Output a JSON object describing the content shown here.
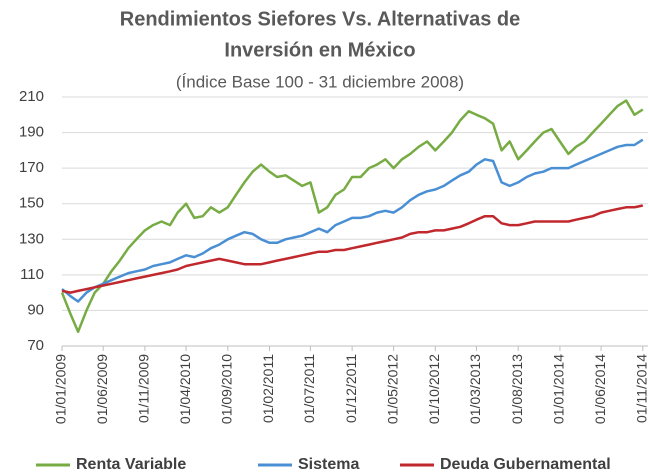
{
  "chart_data": {
    "type": "line",
    "title": [
      "Rendimientos Siefores Vs. Alternativas de",
      "Inversión en México"
    ],
    "subtitle": "(Índice Base 100 - 31 diciembre 2008)",
    "x": [
      "2009-01-01",
      "2009-02-01",
      "2009-03-01",
      "2009-04-01",
      "2009-05-01",
      "2009-06-01",
      "2009-07-01",
      "2009-08-01",
      "2009-09-01",
      "2009-10-01",
      "2009-11-01",
      "2009-12-01",
      "2010-01-01",
      "2010-02-01",
      "2010-03-01",
      "2010-04-01",
      "2010-05-01",
      "2010-06-01",
      "2010-07-01",
      "2010-08-01",
      "2010-09-01",
      "2010-10-01",
      "2010-11-01",
      "2010-12-01",
      "2011-01-01",
      "2011-02-01",
      "2011-03-01",
      "2011-04-01",
      "2011-05-01",
      "2011-06-01",
      "2011-07-01",
      "2011-08-01",
      "2011-09-01",
      "2011-10-01",
      "2011-11-01",
      "2011-12-01",
      "2012-01-01",
      "2012-02-01",
      "2012-03-01",
      "2012-04-01",
      "2012-05-01",
      "2012-06-01",
      "2012-07-01",
      "2012-08-01",
      "2012-09-01",
      "2012-10-01",
      "2012-11-01",
      "2012-12-01",
      "2013-01-01",
      "2013-02-01",
      "2013-03-01",
      "2013-04-01",
      "2013-05-01",
      "2013-06-01",
      "2013-07-01",
      "2013-08-01",
      "2013-09-01",
      "2013-10-01",
      "2013-11-01",
      "2013-12-01",
      "2014-01-01",
      "2014-02-01",
      "2014-03-01",
      "2014-04-01",
      "2014-05-01",
      "2014-06-01",
      "2014-07-01",
      "2014-08-01",
      "2014-09-01",
      "2014-10-01",
      "2014-11-01"
    ],
    "series": [
      {
        "name": "Renta Variable",
        "color": "#77ab43",
        "values": [
          100,
          88,
          78,
          90,
          100,
          105,
          112,
          118,
          125,
          130,
          135,
          138,
          140,
          138,
          145,
          150,
          142,
          143,
          148,
          145,
          148,
          155,
          162,
          168,
          172,
          168,
          165,
          166,
          163,
          160,
          162,
          145,
          148,
          155,
          158,
          165,
          165,
          170,
          172,
          175,
          170,
          175,
          178,
          182,
          185,
          180,
          185,
          190,
          197,
          202,
          200,
          198,
          195,
          180,
          185,
          175,
          180,
          185,
          190,
          192,
          185,
          178,
          182,
          185,
          190,
          195,
          200,
          205,
          208,
          200,
          203
        ]
      },
      {
        "name": "Sistema",
        "color": "#4a8fd4",
        "values": [
          102,
          98,
          95,
          100,
          103,
          105,
          107,
          109,
          111,
          112,
          113,
          115,
          116,
          117,
          119,
          121,
          120,
          122,
          125,
          127,
          130,
          132,
          134,
          133,
          130,
          128,
          128,
          130,
          131,
          132,
          134,
          136,
          134,
          138,
          140,
          142,
          142,
          143,
          145,
          146,
          145,
          148,
          152,
          155,
          157,
          158,
          160,
          163,
          166,
          168,
          172,
          175,
          174,
          162,
          160,
          162,
          165,
          167,
          168,
          170,
          170,
          170,
          172,
          174,
          176,
          178,
          180,
          182,
          183,
          183,
          186
        ]
      },
      {
        "name": "Deuda Gubernamental",
        "color": "#c0282d",
        "values": [
          101,
          100,
          101,
          102,
          103,
          104,
          105,
          106,
          107,
          108,
          109,
          110,
          111,
          112,
          113,
          115,
          116,
          117,
          118,
          119,
          118,
          117,
          116,
          116,
          116,
          117,
          118,
          119,
          120,
          121,
          122,
          123,
          123,
          124,
          124,
          125,
          126,
          127,
          128,
          129,
          130,
          131,
          133,
          134,
          134,
          135,
          135,
          136,
          137,
          139,
          141,
          143,
          143,
          139,
          138,
          138,
          139,
          140,
          140,
          140,
          140,
          140,
          141,
          142,
          143,
          145,
          146,
          147,
          148,
          148,
          149
        ]
      }
    ],
    "xlim": [
      "2009-01-01",
      "2014-11-20"
    ],
    "xticks": [
      {
        "value": "2009-01-01",
        "label": "01/01/2009"
      },
      {
        "value": "2009-06-01",
        "label": "01/06/2009"
      },
      {
        "value": "2009-11-01",
        "label": "01/11/2009"
      },
      {
        "value": "2010-04-01",
        "label": "01/04/2010"
      },
      {
        "value": "2010-09-01",
        "label": "01/09/2010"
      },
      {
        "value": "2011-02-01",
        "label": "01/02/2011"
      },
      {
        "value": "2011-07-01",
        "label": "01/07/2011"
      },
      {
        "value": "2011-12-01",
        "label": "01/12/2011"
      },
      {
        "value": "2012-05-01",
        "label": "01/05/2012"
      },
      {
        "value": "2012-10-01",
        "label": "01/10/2012"
      },
      {
        "value": "2013-03-01",
        "label": "01/03/2013"
      },
      {
        "value": "2013-08-01",
        "label": "01/08/2013"
      },
      {
        "value": "2014-01-01",
        "label": "01/01/2014"
      },
      {
        "value": "2014-06-01",
        "label": "01/06/2014"
      },
      {
        "value": "2014-11-01",
        "label": "01/11/2014"
      }
    ],
    "ylim": [
      70,
      210
    ],
    "yticks": [
      70,
      90,
      110,
      130,
      150,
      170,
      190,
      210
    ],
    "grid": true,
    "legend": "bottom"
  }
}
